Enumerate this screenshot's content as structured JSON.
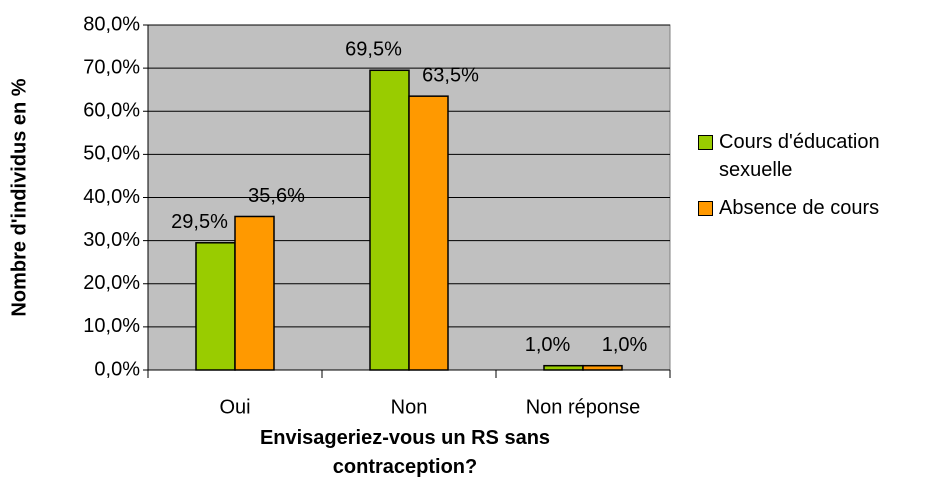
{
  "chart_data": {
    "type": "bar",
    "categories": [
      "Oui",
      "Non",
      "Non réponse"
    ],
    "series": [
      {
        "name": "Cours d'éducation sexuelle",
        "color": "#99cc00",
        "values": [
          29.5,
          69.5,
          1.0
        ],
        "value_labels": [
          "29,5%",
          "69,5%",
          "1,0%"
        ]
      },
      {
        "name": "Absence de cours",
        "color": "#ff9900",
        "values": [
          35.6,
          63.5,
          1.0
        ],
        "value_labels": [
          "35,6%",
          "63,5%",
          "1,0%"
        ]
      }
    ],
    "ylabel": "Nombre d'individus en %",
    "xlabel": "Envisageriez-vous un RS sans contraception?",
    "ylim": [
      0,
      80
    ],
    "yticks": [
      {
        "value": 0,
        "label": "0,0%"
      },
      {
        "value": 10,
        "label": "10,0%"
      },
      {
        "value": 20,
        "label": "20,0%"
      },
      {
        "value": 30,
        "label": "30,0%"
      },
      {
        "value": 40,
        "label": "40,0%"
      },
      {
        "value": 50,
        "label": "50,0%"
      },
      {
        "value": 60,
        "label": "60,0%"
      },
      {
        "value": 70,
        "label": "70,0%"
      },
      {
        "value": 80,
        "label": "80,0%"
      }
    ],
    "grid": true,
    "legend": "right"
  }
}
